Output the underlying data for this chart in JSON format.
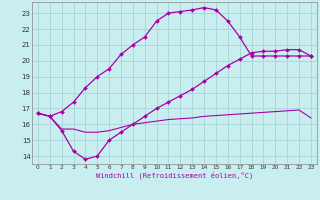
{
  "xlabel": "Windchill (Refroidissement éolien,°C)",
  "bg_color": "#c8eef0",
  "grid_color": "#a8d4d8",
  "line_color": "#aa00aa",
  "xlim": [
    -0.5,
    23.5
  ],
  "ylim": [
    13.5,
    23.7
  ],
  "xticks": [
    0,
    1,
    2,
    3,
    4,
    5,
    6,
    7,
    8,
    9,
    10,
    11,
    12,
    13,
    14,
    15,
    16,
    17,
    18,
    19,
    20,
    21,
    22,
    23
  ],
  "yticks": [
    14,
    15,
    16,
    17,
    18,
    19,
    20,
    21,
    22,
    23
  ],
  "line1_x": [
    0,
    1,
    2,
    3,
    4,
    5,
    6,
    7,
    8,
    9,
    10,
    11,
    12,
    13,
    14,
    15,
    16,
    17,
    18,
    19,
    20,
    21,
    22,
    23
  ],
  "line1_y": [
    16.7,
    16.5,
    16.8,
    17.4,
    18.3,
    19.0,
    19.5,
    20.4,
    21.0,
    21.5,
    22.5,
    23.0,
    23.1,
    23.2,
    23.35,
    23.2,
    22.5,
    21.5,
    20.3,
    20.3,
    20.3,
    20.3,
    20.3,
    20.3
  ],
  "line2_x": [
    0,
    1,
    2,
    3,
    4,
    5,
    6,
    7,
    8,
    9,
    10,
    11,
    12,
    13,
    14,
    15,
    16,
    17,
    18,
    19,
    20,
    21,
    22,
    23
  ],
  "line2_y": [
    16.7,
    16.5,
    15.7,
    15.7,
    15.5,
    15.5,
    15.6,
    15.8,
    16.0,
    16.1,
    16.2,
    16.3,
    16.35,
    16.4,
    16.5,
    16.55,
    16.6,
    16.65,
    16.7,
    16.75,
    16.8,
    16.85,
    16.9,
    16.4
  ],
  "line3_x": [
    0,
    1,
    2,
    3,
    4,
    5,
    6,
    7,
    8,
    9,
    10,
    11,
    12,
    13,
    14,
    15,
    16,
    17,
    18,
    19,
    20,
    21,
    22,
    23
  ],
  "line3_y": [
    16.7,
    16.5,
    15.6,
    14.3,
    13.8,
    14.0,
    15.0,
    15.5,
    16.0,
    16.5,
    17.0,
    17.4,
    17.8,
    18.2,
    18.7,
    19.2,
    19.7,
    20.1,
    20.5,
    20.6,
    20.6,
    20.7,
    20.7,
    20.3
  ],
  "marker": "D",
  "markersize": 2.0,
  "linewidth": 0.9
}
